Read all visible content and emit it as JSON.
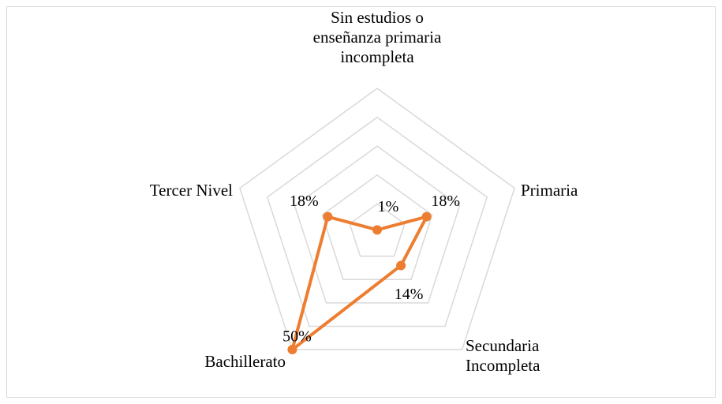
{
  "chart_data": {
    "type": "radar",
    "categories": [
      "Sin estudios o enseñanza primaria incompleta",
      "Primaria",
      "Secundaria Incompleta",
      "Bachillerato",
      "Tercer Nivel"
    ],
    "values": [
      1,
      18,
      14,
      50,
      18
    ],
    "value_labels": [
      "1%",
      "18%",
      "14%",
      "50%",
      "18%"
    ],
    "color": "#ed7d31",
    "ylim": [
      0,
      50
    ],
    "yticks": [
      0,
      10,
      20,
      30,
      40,
      50
    ],
    "grid": true
  }
}
